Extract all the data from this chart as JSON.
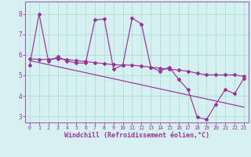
{
  "xlabel": "Windchill (Refroidissement éolien,°C)",
  "bg_color": "#d6f0f0",
  "line_color": "#993399",
  "grid_color": "#aadddd",
  "spine_color": "#9966aa",
  "tick_color": "#993399",
  "xlim": [
    -0.5,
    23.5
  ],
  "ylim": [
    2.7,
    8.6
  ],
  "yticks": [
    3,
    4,
    5,
    6,
    7,
    8
  ],
  "xticks": [
    0,
    1,
    2,
    3,
    4,
    5,
    6,
    7,
    8,
    9,
    10,
    11,
    12,
    13,
    14,
    15,
    16,
    17,
    18,
    19,
    20,
    21,
    22,
    23
  ],
  "main_series_x": [
    0,
    1,
    2,
    3,
    4,
    5,
    6,
    7,
    8,
    9,
    10,
    11,
    12,
    13,
    14,
    15,
    16,
    17,
    18,
    19,
    20,
    21,
    22,
    23
  ],
  "main_series_y": [
    5.5,
    8.0,
    5.7,
    5.9,
    5.7,
    5.6,
    5.6,
    7.7,
    7.75,
    5.3,
    5.5,
    7.8,
    7.5,
    5.4,
    5.2,
    5.4,
    4.8,
    4.3,
    2.95,
    2.85,
    3.6,
    4.3,
    4.1,
    4.85
  ],
  "smooth_series_x": [
    0,
    1,
    2,
    3,
    4,
    5,
    6,
    7,
    8,
    9,
    10,
    11,
    12,
    13,
    14,
    15,
    16,
    17,
    18,
    19,
    20,
    21,
    22,
    23
  ],
  "smooth_series_y": [
    5.8,
    5.78,
    5.78,
    5.82,
    5.77,
    5.72,
    5.67,
    5.62,
    5.57,
    5.52,
    5.5,
    5.5,
    5.45,
    5.4,
    5.35,
    5.3,
    5.25,
    5.2,
    5.1,
    5.02,
    5.02,
    5.02,
    5.02,
    4.95
  ],
  "trend_x": [
    0,
    23
  ],
  "trend_y": [
    5.72,
    3.45
  ]
}
